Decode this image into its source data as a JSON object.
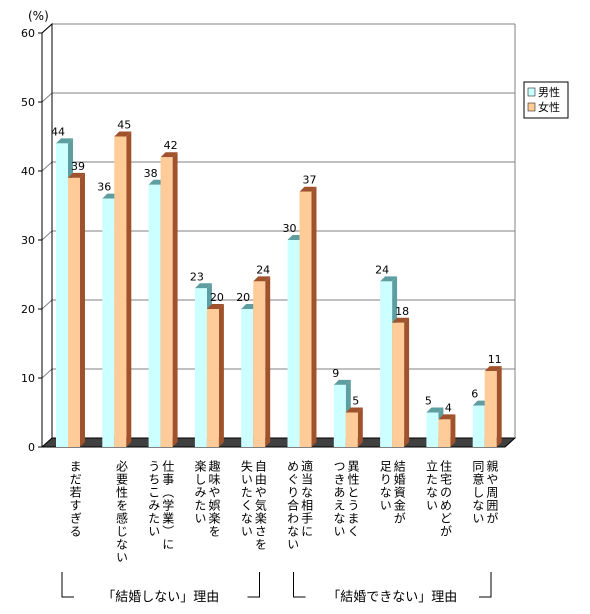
{
  "chart_data": {
    "type": "bar",
    "unit_label": "(%)",
    "ylim": [
      0,
      60
    ],
    "y_ticks": [
      "0",
      "10",
      "20",
      "30",
      "40",
      "50",
      "60"
    ],
    "grid": true,
    "legend_position": "right",
    "categories": [
      [
        "まだ若すぎる"
      ],
      [
        "必要性を感じない"
      ],
      [
        "仕事（学業）に",
        "うちこみたい"
      ],
      [
        "趣味や娯楽を",
        "楽しみたい"
      ],
      [
        "自由や気楽さを",
        "失いたくない"
      ],
      [
        "適当な相手に",
        "めぐり合わない"
      ],
      [
        "異性とうまく",
        "つきあえない"
      ],
      [
        "結婚資金が",
        "足りない"
      ],
      [
        "住宅のめどが",
        "立たない"
      ],
      [
        "親や周囲が",
        "同意しない"
      ]
    ],
    "series": [
      {
        "name": "男性",
        "color": "#ccffff",
        "side_color": "#5f9ea0",
        "values": [
          44,
          36,
          38,
          23,
          20,
          30,
          9,
          24,
          5,
          6
        ]
      },
      {
        "name": "女性",
        "color": "#ffcc99",
        "side_color": "#a0522d",
        "values": [
          39,
          45,
          42,
          20,
          24,
          37,
          5,
          18,
          4,
          11
        ]
      }
    ],
    "groups": [
      {
        "label": "「結婚しない」理由",
        "category_range": [
          0,
          4
        ]
      },
      {
        "label": "「結婚できない」理由",
        "category_range": [
          5,
          9
        ]
      }
    ]
  }
}
